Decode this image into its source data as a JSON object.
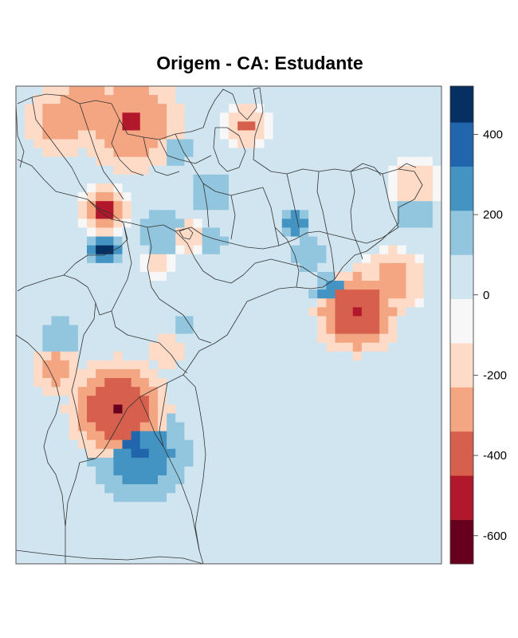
{
  "chart_data": {
    "type": "heatmap",
    "title": "Origem - CA: Estudante",
    "xlabel": "",
    "ylabel": "",
    "legend_placement": "right",
    "colorbar": {
      "range": [
        -670,
        520
      ],
      "breaks": [
        -670,
        -560,
        -450,
        -340,
        -230,
        -120,
        -10,
        100,
        210,
        320,
        430,
        520
      ],
      "colors": [
        "#67001f",
        "#b2182b",
        "#d6604d",
        "#f4a582",
        "#fddbc7",
        "#f7f7f7",
        "#d1e5f0",
        "#92c5de",
        "#4393c3",
        "#2166ac",
        "#053061"
      ],
      "tick_values": [
        -600,
        -400,
        -200,
        0,
        200,
        400
      ],
      "tick_labels": [
        "-600",
        "-400",
        "-200",
        "0",
        "200",
        "400"
      ]
    },
    "grid": {
      "cols": 48,
      "rows": 54,
      "background_value": 0,
      "hotspots": [
        {
          "cx": 11.5,
          "cy": 36.5,
          "r": 6,
          "value": -430,
          "peak": -650
        },
        {
          "cx": 13,
          "cy": 4,
          "r": 6,
          "value": -330,
          "peak": -520
        },
        {
          "cx": 8,
          "cy": 2,
          "r": 5,
          "value": -280
        },
        {
          "cx": 5,
          "cy": 4,
          "r": 4,
          "value": -300
        },
        {
          "cx": 38.5,
          "cy": 25.5,
          "r": 5,
          "value": -420,
          "peak": -520
        },
        {
          "cx": 42.5,
          "cy": 22,
          "r": 4,
          "value": -260
        },
        {
          "cx": 10,
          "cy": 14,
          "r": 3,
          "value": -280,
          "peak": -460
        },
        {
          "cx": 4.5,
          "cy": 32,
          "r": 3,
          "value": -260
        },
        {
          "cx": 26,
          "cy": 4.5,
          "r": 3,
          "value": -220,
          "peak": -380
        },
        {
          "cx": 45,
          "cy": 11,
          "r": 3,
          "value": -220
        },
        {
          "cx": 14,
          "cy": 41.5,
          "r": 6,
          "value": 260,
          "peak": 330
        },
        {
          "cx": 13,
          "cy": 40,
          "r": 3,
          "value": 340
        },
        {
          "cx": 10,
          "cy": 18.5,
          "r": 2,
          "value": 360,
          "peak": 500
        },
        {
          "cx": 36,
          "cy": 23.5,
          "r": 2.5,
          "value": 300
        },
        {
          "cx": 31.5,
          "cy": 15.5,
          "r": 2,
          "value": 250
        },
        {
          "cx": 45,
          "cy": 14,
          "r": 2.5,
          "value": 200
        },
        {
          "cx": 22,
          "cy": 17.5,
          "r": 2,
          "value": 200
        },
        {
          "cx": 18,
          "cy": 7,
          "r": 2,
          "value": 190
        },
        {
          "cx": 5,
          "cy": 28.5,
          "r": 2.5,
          "value": 190
        },
        {
          "cx": 16.5,
          "cy": 16.5,
          "r": 3,
          "value": 180
        },
        {
          "cx": 22,
          "cy": 12,
          "r": 3,
          "value": 150
        },
        {
          "cx": 15,
          "cy": 36,
          "r": 2.5,
          "value": 180
        },
        {
          "cx": 33,
          "cy": 19,
          "r": 2.5,
          "value": 180
        },
        {
          "cx": 19,
          "cy": 27,
          "r": 2,
          "value": 150
        },
        {
          "cx": 17,
          "cy": 30,
          "r": 2,
          "value": -210
        },
        {
          "cx": 19.5,
          "cy": 17,
          "r": 2,
          "value": -220
        },
        {
          "cx": 16,
          "cy": 20,
          "r": 2,
          "value": -180
        }
      ],
      "broad_regions": [
        {
          "x0": 31,
          "y0": 0,
          "x1": 37,
          "y1": 9,
          "value": 60
        },
        {
          "x0": 24,
          "y0": 18,
          "x1": 33,
          "y1": 33,
          "value": 60
        },
        {
          "x0": 28,
          "y0": 20,
          "x1": 34,
          "y1": 30,
          "value": 60
        },
        {
          "x0": 24,
          "y0": 33,
          "x1": 28,
          "y1": 46,
          "value": 60
        },
        {
          "x0": 40,
          "y0": 9,
          "x1": 48,
          "y1": 17,
          "value": 70
        },
        {
          "x0": 13,
          "y0": 10,
          "x1": 27,
          "y1": 27,
          "value": 40
        },
        {
          "x0": 4,
          "y0": 26,
          "x1": 16,
          "y1": 38,
          "value": 40
        },
        {
          "x0": 9,
          "y0": 43,
          "x1": 24,
          "y1": 52,
          "value": 50
        }
      ]
    }
  }
}
